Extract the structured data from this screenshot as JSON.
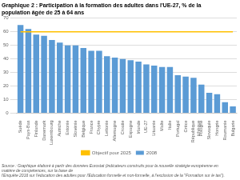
{
  "chart_data": {
    "type": "bar",
    "title": "Graphique 2 : Participation à la formation des adultes dans l'UE-27, % de la population âgée de 25 à 64 ans",
    "categories": [
      "Suède",
      "Pays-Bas",
      "Finlande",
      "Danemark",
      "Luxembourg",
      "Autriche",
      "Estonie",
      "Slovénie",
      "Belgique",
      "France",
      "Chypre",
      "Lettonie",
      "Allemagne",
      "Croatie",
      "Espagne",
      "Irlande",
      "UE-27",
      "Lituanie",
      "Malte",
      "Italie",
      "Portugal",
      "Grèce",
      "République\ntchèque",
      "Pologne",
      "Slovaquie",
      "Hongrie",
      "Roumanie",
      "Bulgarie"
    ],
    "series": [
      {
        "name": "2008",
        "type": "bar",
        "color": "#5b9bd5",
        "values": [
          65,
          62,
          58,
          57,
          54,
          52,
          50,
          50,
          48,
          46,
          46,
          42,
          41,
          40,
          39,
          38,
          36,
          35,
          34,
          34,
          28,
          27,
          26,
          21,
          15,
          14,
          8,
          5
        ]
      },
      {
        "name": "Objectif pour 2025",
        "type": "line",
        "color": "#ffc000",
        "values": [
          60,
          60,
          60,
          60,
          60,
          60,
          60,
          60,
          60,
          60,
          60,
          60,
          60,
          60,
          60,
          60,
          60,
          60,
          60,
          60,
          60,
          60,
          60,
          60,
          60,
          60,
          60,
          60
        ]
      }
    ],
    "ylim": [
      0,
      70
    ],
    "yticks": [
      0,
      10,
      20,
      30,
      40,
      50,
      60,
      70
    ],
    "grid": true,
    "legend": "bottom",
    "annotation": "Source : Graphique élaboré à partir des données Eurostat (indicateurs construits pour la nouvelle stratégie européenne en matière de compétences, sur la base de\nl'Enquête 2016 sur l'éducation des adultes pour l'Education formelle et non-formelle, à l'exclusion de la \"Formation sur le tas\")."
  }
}
